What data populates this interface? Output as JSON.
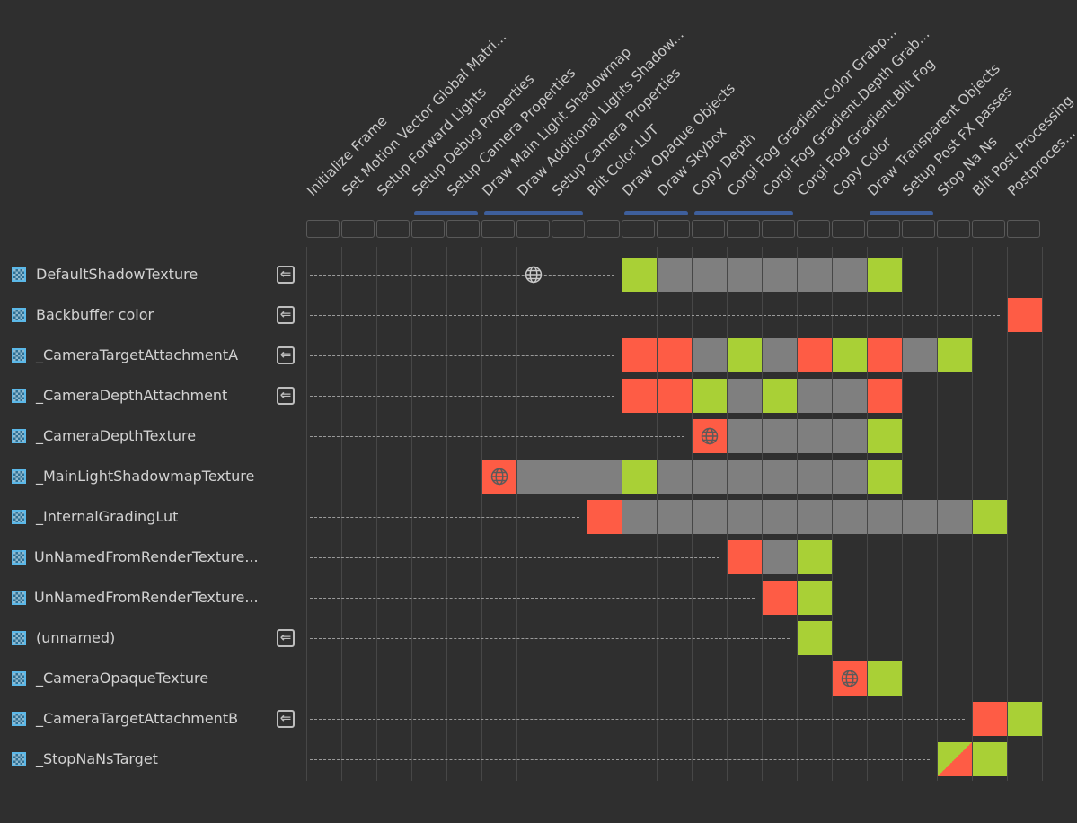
{
  "passes": [
    "Initialize Frame",
    "Set Motion Vector Global Matri...",
    "Setup Forward Lights",
    "Setup Debug Properties",
    "Setup Camera Properties",
    "Draw Main Light Shadowmap",
    "Draw Additional Lights Shadow...",
    "Setup Camera Properties",
    "Blit Color LUT",
    "Draw Opaque Objects",
    "Draw Skybox",
    "Copy Depth",
    "Corgi Fog Gradient.Color Grabp...",
    "Corgi Fog Gradient.Depth Grab...",
    "Corgi Fog Gradient.Blit Fog",
    "Copy Color",
    "Draw Transparent Objects",
    "Setup Post FX passes",
    "Stop Na Ns",
    "Blit Post Processing",
    "Postproces..."
  ],
  "merged_pass_groups": [
    [
      3,
      4
    ],
    [
      5,
      7
    ],
    [
      9,
      10
    ],
    [
      11,
      13
    ],
    [
      16,
      17
    ]
  ],
  "colors": {
    "read": "#7f7f7f",
    "write": "#a9d036",
    "create": "#fe5c45",
    "group": "#3e5f9c",
    "background": "#2f2f2f"
  },
  "resources": [
    {
      "name": "DefaultShadowTexture",
      "imported": true,
      "globe_on_line": 6,
      "cells": {
        "9": "G",
        "10": "g",
        "11": "g",
        "12": "g",
        "13": "g",
        "14": "g",
        "15": "g",
        "16": "G"
      }
    },
    {
      "name": "Backbuffer color",
      "imported": true,
      "cells": {
        "20": "R"
      }
    },
    {
      "name": "_CameraTargetAttachmentA",
      "imported": true,
      "cells": {
        "9": "R",
        "10": "R",
        "11": "g",
        "12": "G",
        "13": "g",
        "14": "R",
        "15": "G",
        "16": "R",
        "17": "g",
        "18": "G"
      }
    },
    {
      "name": "_CameraDepthAttachment",
      "imported": true,
      "cells": {
        "9": "R",
        "10": "R",
        "11": "G",
        "12": "g",
        "13": "G",
        "14": "g",
        "15": "g",
        "16": "R"
      }
    },
    {
      "name": "_CameraDepthTexture",
      "imported": false,
      "globe_cell": 11,
      "cells": {
        "11": "R",
        "12": "g",
        "13": "g",
        "14": "g",
        "15": "g",
        "16": "G"
      }
    },
    {
      "name": "_MainLightShadowmapTexture",
      "imported": false,
      "globe_cell": 5,
      "cells": {
        "5": "R",
        "6": "g",
        "7": "g",
        "8": "g",
        "9": "G",
        "10": "g",
        "11": "g",
        "12": "g",
        "13": "g",
        "14": "g",
        "15": "g",
        "16": "G"
      }
    },
    {
      "name": "_InternalGradingLut",
      "imported": false,
      "cells": {
        "8": "R",
        "9": "g",
        "10": "g",
        "11": "g",
        "12": "g",
        "13": "g",
        "14": "g",
        "15": "g",
        "16": "g",
        "17": "g",
        "18": "g",
        "19": "G"
      }
    },
    {
      "name": "UnNamedFromRenderTexture...",
      "imported": false,
      "cells": {
        "12": "R",
        "13": "g",
        "14": "G"
      }
    },
    {
      "name": "UnNamedFromRenderTexture...",
      "imported": false,
      "cells": {
        "13": "R",
        "14": "G"
      }
    },
    {
      "name": "(unnamed)",
      "imported": true,
      "cells": {
        "14": "G"
      }
    },
    {
      "name": "_CameraOpaqueTexture",
      "imported": false,
      "globe_cell": 15,
      "cells": {
        "15": "R",
        "16": "G"
      }
    },
    {
      "name": "_CameraTargetAttachmentB",
      "imported": true,
      "cells": {
        "19": "R",
        "20": "G"
      }
    },
    {
      "name": "_StopNaNsTarget",
      "imported": false,
      "cells": {
        "18": "S",
        "19": "G"
      }
    }
  ],
  "icons": {
    "resource": "texture-icon",
    "imported": "import-icon",
    "global": "globe-icon"
  }
}
